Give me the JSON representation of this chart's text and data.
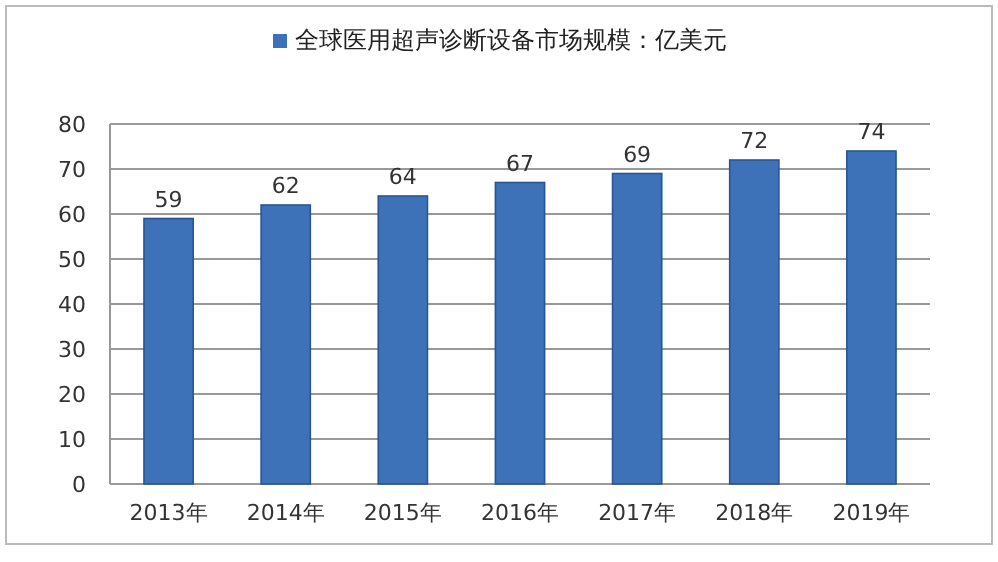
{
  "chart_data": {
    "type": "bar",
    "categories": [
      "2013年",
      "2014年",
      "2015年",
      "2016年",
      "2017年",
      "2018年",
      "2019年"
    ],
    "series": [
      {
        "name": "全球医用超声诊断设备市场规模：亿美元",
        "color": "#3d72b8",
        "values": [
          59,
          62,
          64,
          67,
          69,
          72,
          74
        ]
      }
    ],
    "ylim": [
      0,
      80
    ],
    "yticks": [
      0,
      10,
      20,
      30,
      40,
      50,
      60,
      70,
      80
    ],
    "grid": "y",
    "legend": "top",
    "data_labels": true
  }
}
